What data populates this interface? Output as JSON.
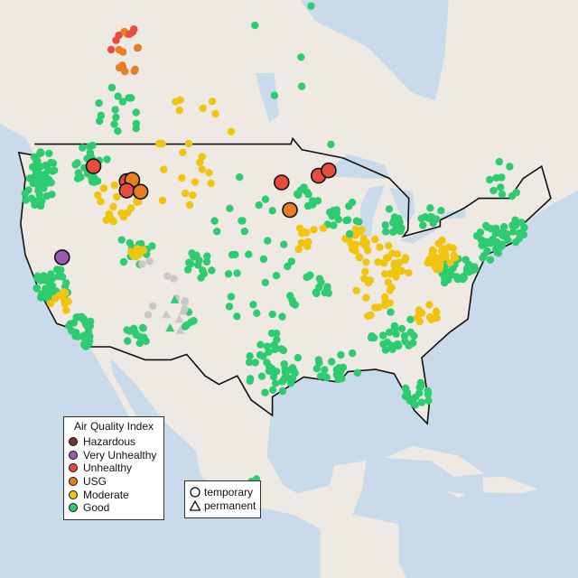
{
  "legend": {
    "title": "Air Quality Index",
    "categories": [
      {
        "key": "h",
        "label": "Hazardous",
        "color": "#7e2f2f"
      },
      {
        "key": "v",
        "label": "Very Unhealthy",
        "color": "#9b59b6"
      },
      {
        "key": "u",
        "label": "Unhealthy",
        "color": "#e74c3c"
      },
      {
        "key": "s",
        "label": "USG",
        "color": "#e67e22"
      },
      {
        "key": "m",
        "label": "Moderate",
        "color": "#f1c40f"
      },
      {
        "key": "g",
        "label": "Good",
        "color": "#2ecc71"
      }
    ],
    "no_data_color": "#c8c8c8",
    "types": [
      {
        "shape": "circle",
        "label": "temporary"
      },
      {
        "shape": "triangle",
        "label": "permanent"
      }
    ]
  },
  "colors": {
    "water": "#c9dbea",
    "land": "#efe9e4",
    "border": "#111111"
  },
  "large_markers": [
    {
      "lon": -116.6,
      "lat": 47.4,
      "cat": "u"
    },
    {
      "lon": -113.0,
      "lat": 46.3,
      "cat": "u"
    },
    {
      "lon": -112.4,
      "lat": 46.4,
      "cat": "s"
    },
    {
      "lon": -113.0,
      "lat": 45.6,
      "cat": "u"
    },
    {
      "lon": -111.5,
      "lat": 45.5,
      "cat": "s"
    },
    {
      "lon": -96.2,
      "lat": 46.2,
      "cat": "u"
    },
    {
      "lon": -95.3,
      "lat": 44.1,
      "cat": "s"
    },
    {
      "lon": -92.2,
      "lat": 46.7,
      "cat": "u"
    },
    {
      "lon": -91.1,
      "lat": 47.1,
      "cat": "u"
    },
    {
      "lon": -120.0,
      "lat": 40.3,
      "cat": "v"
    }
  ],
  "permanent_monitors": [
    {
      "lon": -107.8,
      "lat": 36.7,
      "cat": "g"
    },
    {
      "lon": -108.7,
      "lat": 35.4,
      "cat": "n"
    },
    {
      "lon": -107.3,
      "lat": 35.0,
      "cat": "n"
    },
    {
      "lon": -108.3,
      "lat": 34.2,
      "cat": "g"
    },
    {
      "lon": -107.2,
      "lat": 34.0,
      "cat": "n"
    },
    {
      "lon": -106.9,
      "lat": 35.7,
      "cat": "n"
    }
  ],
  "monitor_clusters": [
    [
      -121,
      38,
      1.5,
      40,
      "g"
    ],
    [
      -118,
      34.3,
      1,
      20,
      "g"
    ],
    [
      -117,
      33,
      0.6,
      8,
      "g"
    ],
    [
      -122.5,
      45.5,
      1.3,
      30,
      "g"
    ],
    [
      -122,
      47.5,
      1,
      25,
      "g"
    ],
    [
      -117,
      47.5,
      1.5,
      25,
      "g"
    ],
    [
      -114,
      45,
      2,
      20,
      "m"
    ],
    [
      -112,
      41,
      1.5,
      12,
      "g"
    ],
    [
      -111.8,
      40.7,
      0.6,
      10,
      "m"
    ],
    [
      -120,
      36.5,
      1,
      10,
      "m"
    ],
    [
      -105,
      39.7,
      1.2,
      15,
      "g"
    ],
    [
      -112,
      33.5,
      1,
      12,
      "g"
    ],
    [
      -106.5,
      35,
      1,
      6,
      "g"
    ],
    [
      -97,
      30.5,
      2.5,
      25,
      "g"
    ],
    [
      -95.5,
      29.8,
      0.8,
      12,
      "g"
    ],
    [
      -97,
      32.8,
      1,
      10,
      "g"
    ],
    [
      -88,
      41.8,
      1,
      15,
      "m"
    ],
    [
      -86,
      40,
      2,
      20,
      "m"
    ],
    [
      -84,
      39.5,
      1.5,
      15,
      "m"
    ],
    [
      -84,
      33.8,
      2,
      25,
      "g"
    ],
    [
      -77,
      39,
      1.5,
      30,
      "g"
    ],
    [
      -73.5,
      41.5,
      1.5,
      35,
      "g"
    ],
    [
      -71,
      42.5,
      1,
      15,
      "g"
    ],
    [
      -79,
      40.5,
      1.3,
      25,
      "m"
    ],
    [
      -80.5,
      35.3,
      1,
      12,
      "m"
    ],
    [
      -81.5,
      28,
      1.2,
      18,
      "g"
    ],
    [
      -89,
      30.5,
      1.5,
      10,
      "g"
    ],
    [
      -98,
      38,
      4,
      25,
      "g"
    ],
    [
      -100,
      44,
      3,
      10,
      "g"
    ],
    [
      -93.5,
      45,
      1,
      12,
      "g"
    ],
    [
      -89.5,
      43.5,
      1.5,
      15,
      "g"
    ],
    [
      -84.5,
      43,
      1.2,
      15,
      "g"
    ],
    [
      -114,
      51,
      2,
      15,
      "g"
    ],
    [
      -80,
      43.6,
      1,
      10,
      "g"
    ],
    [
      -72,
      46.5,
      1.5,
      10,
      "g"
    ],
    [
      -114,
      55,
      2,
      12,
      "s"
    ],
    [
      -114,
      56,
      1.5,
      6,
      "u"
    ],
    [
      -105,
      51,
      3,
      8,
      "m"
    ],
    [
      -95,
      54,
      6,
      8,
      "g"
    ],
    [
      -99,
      19.5,
      0.4,
      4,
      "g"
    ],
    [
      -110,
      37,
      3,
      10,
      "n"
    ],
    [
      -93,
      42,
      1.5,
      10,
      "m"
    ],
    [
      -86,
      36.5,
      2,
      12,
      "m"
    ],
    [
      -92,
      38.5,
      1.5,
      10,
      "g"
    ],
    [
      -91.5,
      30.5,
      1,
      8,
      "g"
    ],
    [
      -107,
      47,
      3,
      15,
      "m"
    ]
  ]
}
